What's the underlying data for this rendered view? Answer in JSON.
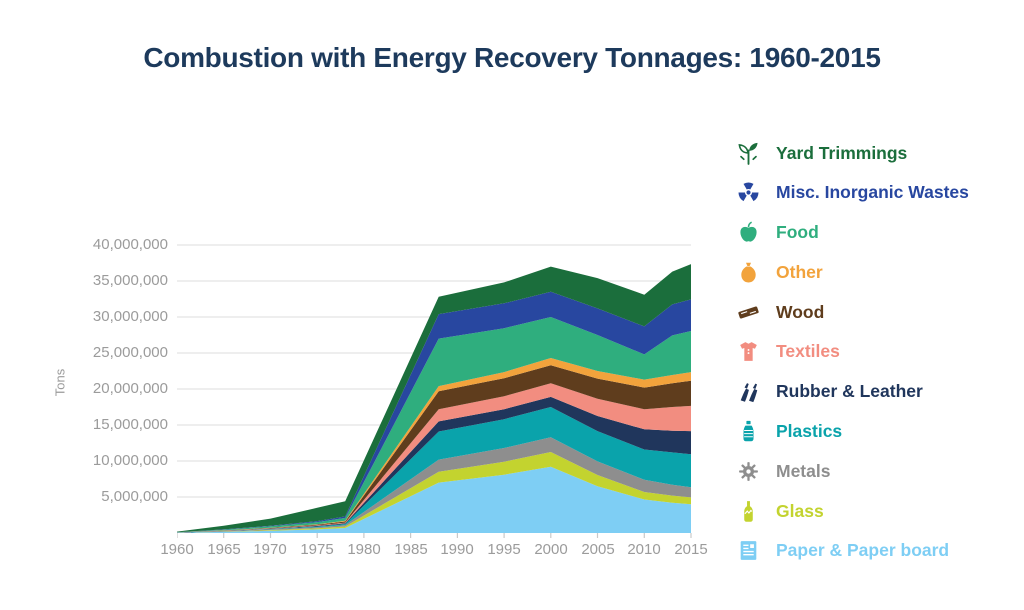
{
  "title": "Combustion with Energy Recovery Tonnages: 1960-2015",
  "colors": {
    "title_text": "#1d3a5c",
    "axis_text": "#9b9b9b",
    "gridline": "#e3e3e3",
    "tick_mark": "#c9c9c9"
  },
  "y_axis": {
    "label": "Tons",
    "tick_labels": [
      "40,000,000",
      "35,000,000",
      "30,000,000",
      "25,000,000",
      "20,000,000",
      "15,000,000",
      "10,000,000",
      "5,000,000"
    ],
    "tick_values_millions": [
      40,
      35,
      30,
      25,
      20,
      15,
      10,
      5
    ]
  },
  "x_axis": {
    "tick_labels": [
      "1960",
      "1965",
      "1970",
      "1975",
      "1980",
      "1985",
      "1990",
      "1995",
      "2000",
      "2005",
      "2010",
      "2015"
    ],
    "tick_values": [
      1960,
      1965,
      1970,
      1975,
      1980,
      1985,
      1990,
      1995,
      2000,
      2005,
      2010,
      2015
    ]
  },
  "chart_data": {
    "type": "area",
    "stacked": true,
    "title": "Combustion with Energy Recovery Tonnages: 1960-2015",
    "xlabel": "",
    "ylabel": "Tons",
    "ylim_millions": [
      0,
      40
    ],
    "xlim": [
      1960,
      2015
    ],
    "grid": "horizontal",
    "legend_position": "right",
    "values_unit": "millions of tons (estimated from chart pixels)",
    "x": [
      1960,
      1965,
      1970,
      1975,
      1978,
      1988,
      1995,
      2000,
      2005,
      2010,
      2013,
      2015
    ],
    "series": [
      {
        "name": "Paper & Paper board",
        "icon": "paper-icon",
        "color": "#7ecef4",
        "values": [
          0.05,
          0.15,
          0.3,
          0.5,
          0.7,
          7.0,
          8.1,
          9.2,
          6.5,
          4.65,
          4.2,
          4.0
        ]
      },
      {
        "name": "Glass",
        "icon": "glass-bottle-icon",
        "color": "#c3d32f",
        "values": [
          0.01,
          0.05,
          0.1,
          0.15,
          0.2,
          1.5,
          1.8,
          2.05,
          1.55,
          1.05,
          1.0,
          0.95
        ]
      },
      {
        "name": "Metals",
        "icon": "gear-icon",
        "color": "#8e8e8e",
        "values": [
          0.01,
          0.05,
          0.1,
          0.15,
          0.2,
          1.7,
          1.9,
          2.05,
          1.9,
          1.7,
          1.5,
          1.4
        ]
      },
      {
        "name": "Plastics",
        "icon": "bottle-icon",
        "color": "#0aa3ab",
        "values": [
          0.0,
          0.02,
          0.05,
          0.1,
          0.15,
          3.9,
          4.0,
          4.2,
          4.2,
          4.2,
          4.5,
          4.6
        ]
      },
      {
        "name": "Rubber & Leather",
        "icon": "gloves-icon",
        "color": "#20365c",
        "values": [
          0.0,
          0.02,
          0.04,
          0.08,
          0.1,
          1.4,
          1.4,
          1.4,
          2.1,
          2.8,
          3.0,
          3.2
        ]
      },
      {
        "name": "Textiles",
        "icon": "shirt-icon",
        "color": "#f28d80",
        "values": [
          0.0,
          0.02,
          0.04,
          0.08,
          0.1,
          1.7,
          1.8,
          1.9,
          2.4,
          2.8,
          3.3,
          3.5
        ]
      },
      {
        "name": "Wood",
        "icon": "plank-icon",
        "color": "#5f3d1d",
        "values": [
          0.01,
          0.03,
          0.06,
          0.1,
          0.15,
          2.5,
          2.5,
          2.5,
          2.8,
          3.0,
          3.3,
          3.5
        ]
      },
      {
        "name": "Other",
        "icon": "sack-icon",
        "color": "#f2a33c",
        "values": [
          0.0,
          0.02,
          0.04,
          0.06,
          0.1,
          0.7,
          0.85,
          1.0,
          1.05,
          1.1,
          1.15,
          1.2
        ]
      },
      {
        "name": "Food",
        "icon": "apple-icon",
        "color": "#2fae7e",
        "values": [
          0.02,
          0.1,
          0.2,
          0.3,
          0.4,
          6.6,
          6.1,
          5.7,
          5.0,
          3.5,
          5.5,
          5.7
        ]
      },
      {
        "name": "Misc. Inorganic Wastes",
        "icon": "radiation-icon",
        "color": "#2847a0",
        "values": [
          0.0,
          0.04,
          0.07,
          0.13,
          0.2,
          3.4,
          3.45,
          3.5,
          3.7,
          3.9,
          4.3,
          4.4
        ]
      },
      {
        "name": "Yard Trimmings",
        "icon": "plant-icon",
        "color": "#1b6e3c",
        "values": [
          0.1,
          0.5,
          1.0,
          1.85,
          2.1,
          2.4,
          2.9,
          3.5,
          4.2,
          4.4,
          4.55,
          4.9
        ]
      }
    ]
  },
  "legend": {
    "order_top_to_bottom": [
      "Yard Trimmings",
      "Misc. Inorganic Wastes",
      "Food",
      "Other",
      "Wood",
      "Textiles",
      "Rubber & Leather",
      "Plastics",
      "Metals",
      "Glass",
      "Paper & Paper board"
    ]
  }
}
